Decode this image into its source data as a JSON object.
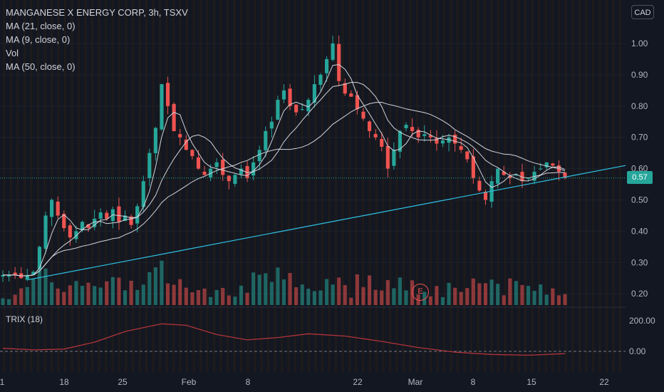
{
  "legend": {
    "title": "MANGANESE X ENERGY CORP, 3h, TSXV",
    "ma21": "MA (21, close, 0)",
    "ma9": "MA (9, close, 0)",
    "vol": "Vol",
    "ma50": "MA (50, close, 0)"
  },
  "currency": "CAD",
  "last_price_label": "0.57",
  "trix_label": "TRIX (18)",
  "earnings_marker": "E",
  "colors": {
    "background": "#131722",
    "up": "#26a69a",
    "down": "#ef5350",
    "trendline": "#2ec4e6",
    "ma": "#d1d4dc",
    "trix": "#b2343a"
  },
  "chart_data": [
    {
      "type": "candlestick",
      "timeframe": "3h",
      "y_axis_ticks": [
        "1.00",
        "0.90",
        "0.80",
        "0.70",
        "0.60",
        "0.50",
        "0.40",
        "0.30",
        "0.20"
      ],
      "x_axis_ticks": [
        "1",
        "18",
        "25",
        "Feb",
        "8",
        "22",
        "Mar",
        "8",
        "15",
        "22"
      ],
      "ylim": [
        0.2,
        1.0
      ],
      "close_path": [
        0.26,
        0.26,
        0.26,
        0.25,
        0.26,
        0.27,
        0.35,
        0.45,
        0.5,
        0.45,
        0.41,
        0.38,
        0.4,
        0.43,
        0.41,
        0.44,
        0.46,
        0.44,
        0.47,
        0.43,
        0.45,
        0.42,
        0.48,
        0.56,
        0.65,
        0.73,
        0.87,
        0.8,
        0.72,
        0.7,
        0.66,
        0.64,
        0.6,
        0.58,
        0.6,
        0.62,
        0.58,
        0.56,
        0.58,
        0.6,
        0.57,
        0.62,
        0.66,
        0.72,
        0.75,
        0.82,
        0.85,
        0.8,
        0.78,
        0.79,
        0.82,
        0.87,
        0.9,
        0.95,
        1.0,
        0.88,
        0.84,
        0.83,
        0.79,
        0.76,
        0.72,
        0.7,
        0.67,
        0.6,
        0.66,
        0.72,
        0.74,
        0.72,
        0.7,
        0.71,
        0.7,
        0.68,
        0.69,
        0.7,
        0.68,
        0.66,
        0.63,
        0.57,
        0.53,
        0.5,
        0.56,
        0.6,
        0.58,
        0.57,
        0.58,
        0.56,
        0.57,
        0.59,
        0.6,
        0.62,
        0.61,
        0.59,
        0.57
      ]
    },
    {
      "type": "line",
      "name": "TRIX (18)",
      "y_axis_ticks": [
        "200.00",
        "0.00"
      ],
      "ylim": [
        -40,
        260
      ],
      "x": [
        0,
        5,
        10,
        15,
        20,
        26,
        30,
        35,
        40,
        45,
        50,
        56,
        62,
        68,
        74,
        80,
        86,
        92
      ],
      "values": [
        20,
        10,
        15,
        60,
        130,
        180,
        170,
        110,
        75,
        90,
        115,
        100,
        65,
        25,
        -5,
        -20,
        -25,
        -15
      ]
    }
  ]
}
